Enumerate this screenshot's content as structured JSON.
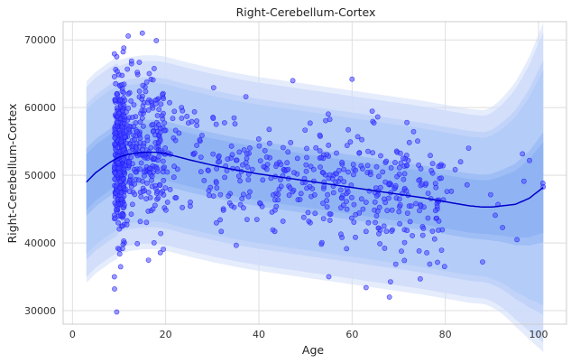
{
  "chart_data": {
    "type": "scatter",
    "title": "Right-Cerebellum-Cortex",
    "xlabel": "Age",
    "ylabel": "Right-Cerebellum-Cortex",
    "xlim": [
      -2,
      106
    ],
    "ylim": [
      28000,
      72700
    ],
    "xticks": [
      0,
      20,
      40,
      60,
      80,
      100
    ],
    "yticks": [
      30000,
      40000,
      50000,
      60000,
      70000
    ],
    "xtick_labels": [
      "0",
      "20",
      "40",
      "60",
      "80",
      "100"
    ],
    "ytick_labels": [
      "30000",
      "40000",
      "50000",
      "60000",
      "70000"
    ],
    "grid": true,
    "colors": {
      "points": "#1a1aff",
      "median_line": "#0000cc",
      "band": "#7fa6f5"
    },
    "centile_bands": [
      {
        "name": "outer",
        "centile_low": 1,
        "centile_high": 99
      },
      {
        "name": "middle",
        "centile_low": 5,
        "centile_high": 95
      },
      {
        "name": "inner",
        "centile_low": 25,
        "centile_high": 75
      }
    ],
    "median_curve": {
      "x": [
        3,
        5,
        8,
        10,
        12,
        15,
        18,
        20,
        25,
        30,
        35,
        40,
        45,
        50,
        55,
        60,
        65,
        70,
        75,
        80,
        85,
        88,
        90,
        95,
        98,
        101
      ],
      "y": [
        49000,
        50400,
        51900,
        52700,
        53100,
        53400,
        53400,
        53200,
        52300,
        51500,
        50800,
        50200,
        49700,
        49200,
        48700,
        48200,
        47700,
        47200,
        46700,
        46100,
        45500,
        45300,
        45300,
        45700,
        46600,
        48200
      ]
    },
    "scatter_summary": {
      "x_range": [
        8,
        101
      ],
      "y_range": [
        29800,
        71000
      ],
      "dense_region_age": [
        9,
        20
      ]
    }
  }
}
